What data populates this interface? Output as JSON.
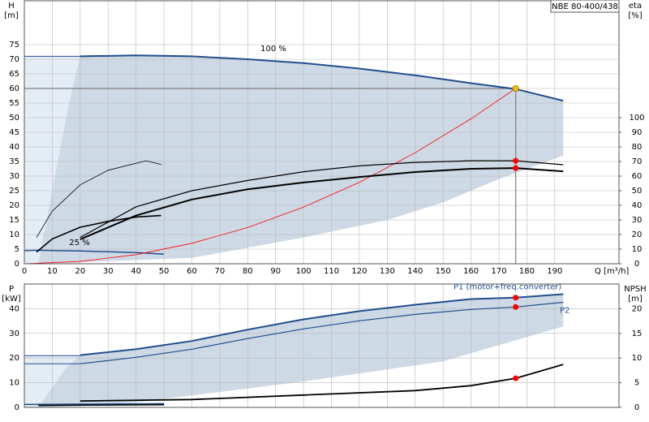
{
  "chart_data": [
    {
      "type": "line",
      "title": "NBE 80-400/438",
      "ylabel": "H",
      "yunit": "[m]",
      "y2label": "eta",
      "y2unit": "[%]",
      "xlabel": "Q [m³/h]",
      "xlim": [
        0,
        213
      ],
      "ylim": [
        0,
        90
      ],
      "y2lim": [
        0,
        180
      ],
      "xticks": [
        0,
        10,
        20,
        30,
        40,
        50,
        60,
        70,
        80,
        90,
        100,
        110,
        120,
        130,
        140,
        150,
        160,
        170,
        180,
        190
      ],
      "yticks": [
        0,
        5,
        10,
        15,
        20,
        25,
        30,
        35,
        40,
        45,
        50,
        55,
        60,
        65,
        70,
        75
      ],
      "y2ticks": [
        0,
        10,
        20,
        30,
        40,
        50,
        60,
        70,
        80,
        90,
        100
      ],
      "grid": true,
      "xtick_labels": true,
      "annotations": [
        "100 %",
        "25 %"
      ],
      "series": [
        {
          "kind": "area",
          "color": "#e4ecf6",
          "x": [
            0,
            20,
            20,
            0
          ],
          "values": [
            71,
            71,
            0,
            0
          ]
        },
        {
          "kind": "area",
          "color": "#cdd9e5",
          "x": [
            20,
            40,
            60,
            80,
            100,
            120,
            140,
            160,
            176,
            193,
            193,
            170,
            150,
            130,
            100,
            60,
            5,
            8,
            12,
            16
          ],
          "values": [
            71,
            71.3,
            71,
            70,
            68.7,
            66.8,
            64.5,
            61.8,
            59.8,
            55.8,
            37,
            29,
            21,
            15,
            9,
            2,
            0,
            15,
            35,
            55
          ]
        },
        {
          "kind": "line",
          "color": "#7f7f7f",
          "width": 1.2,
          "x": [
            0,
            176,
            176
          ],
          "values": [
            60,
            60,
            0
          ]
        },
        {
          "kind": "line",
          "color": "#1f4e8c",
          "width": 1,
          "x": [
            0,
            20
          ],
          "values": [
            71,
            71
          ]
        },
        {
          "kind": "line",
          "color": "#1f4e8c",
          "width": 2,
          "x": [
            20,
            40,
            60,
            80,
            100,
            120,
            140,
            160,
            176,
            193
          ],
          "values": [
            71,
            71.3,
            71,
            70,
            68.7,
            66.8,
            64.5,
            61.8,
            59.8,
            55.8
          ]
        },
        {
          "kind": "line",
          "color": "#1f4e8c",
          "width": 1.5,
          "x": [
            0,
            5,
            20,
            40,
            50
          ],
          "values": [
            4.5,
            4.6,
            4.4,
            3.8,
            3.3
          ]
        },
        {
          "kind": "line",
          "color": "#ff0000",
          "width": 0.8,
          "x": [
            0,
            20,
            40,
            60,
            80,
            100,
            120,
            140,
            160,
            176
          ],
          "values": [
            0,
            0.77,
            3.1,
            7,
            12.4,
            19.4,
            27.9,
            38,
            49.6,
            60
          ]
        },
        {
          "kind": "line",
          "color": "#000000",
          "width": 1.2,
          "axis": "y2",
          "x": [
            20,
            40,
            60,
            80,
            100,
            120,
            140,
            160,
            176,
            193
          ],
          "values": [
            18,
            39,
            50,
            57,
            63,
            67,
            69.4,
            70.5,
            70.5,
            67.8
          ]
        },
        {
          "kind": "line",
          "color": "#000000",
          "width": 2,
          "axis": "y2",
          "x": [
            20,
            40,
            60,
            80,
            100,
            120,
            140,
            160,
            176,
            193
          ],
          "values": [
            16.7,
            33,
            44,
            51,
            55.6,
            59.4,
            62.8,
            65,
            65.5,
            63.3
          ]
        },
        {
          "kind": "line",
          "color": "#000000",
          "width": 0.8,
          "axis": "y2",
          "x": [
            4.4,
            10,
            20,
            30,
            43.6,
            49
          ],
          "values": [
            18,
            36,
            54,
            64,
            70.5,
            68
          ]
        },
        {
          "kind": "line",
          "color": "#000000",
          "width": 1.6,
          "axis": "y2",
          "x": [
            4.4,
            10,
            20,
            30,
            40,
            49
          ],
          "values": [
            8,
            17,
            25,
            29,
            32,
            33
          ]
        },
        {
          "kind": "points",
          "color": "#ff0000",
          "axis": "y2",
          "x": [
            176,
            176
          ],
          "values": [
            70.5,
            65.5
          ]
        },
        {
          "kind": "points",
          "color": "#f5c000",
          "x": [
            176
          ],
          "values": [
            60
          ]
        }
      ]
    },
    {
      "type": "line",
      "ylabel": "P",
      "yunit": "[kW]",
      "y2label": "NPSH",
      "y2unit": "[m]",
      "xlim": [
        0,
        213
      ],
      "ylim": [
        0,
        50
      ],
      "y2lim": [
        0,
        25
      ],
      "xticks": [
        0,
        10,
        20,
        30,
        40,
        50,
        60,
        70,
        80,
        90,
        100,
        110,
        120,
        130,
        140,
        150,
        160,
        170,
        180,
        190
      ],
      "yticks": [
        0,
        10,
        20,
        30,
        40
      ],
      "y2ticks": [
        0,
        5,
        10,
        15,
        20
      ],
      "grid": true,
      "xtick_labels": false,
      "series": [
        {
          "kind": "area",
          "color": "#e4ecf6",
          "x": [
            0,
            20,
            20,
            0
          ],
          "values": [
            21,
            21,
            0,
            0
          ]
        },
        {
          "kind": "area",
          "color": "#cdd9e5",
          "x": [
            20,
            40,
            60,
            80,
            100,
            120,
            140,
            160,
            176,
            193,
            193,
            150,
            100,
            40,
            5,
            10,
            15
          ],
          "values": [
            21.2,
            23.6,
            26.9,
            31.5,
            35.7,
            39,
            41.6,
            43.9,
            44.5,
            45.9,
            32.8,
            18.7,
            10.5,
            2,
            0,
            8,
            16
          ]
        },
        {
          "kind": "line",
          "color": "#1f4e8c",
          "width": 1,
          "x": [
            0,
            20
          ],
          "values": [
            21,
            21
          ]
        },
        {
          "kind": "line",
          "color": "#1f4e8c",
          "width": 1,
          "x": [
            0,
            20
          ],
          "values": [
            17.7,
            17.7
          ]
        },
        {
          "kind": "line",
          "name": "P1 (motor+freq.converter)",
          "color": "#1f4e8c",
          "width": 2,
          "x": [
            20,
            40,
            60,
            80,
            100,
            120,
            140,
            160,
            176,
            193
          ],
          "values": [
            21.2,
            23.6,
            26.9,
            31.5,
            35.7,
            39,
            41.6,
            43.9,
            44.5,
            45.9
          ]
        },
        {
          "kind": "line",
          "name": "P2",
          "color": "#1f4e8c",
          "width": 1.2,
          "x": [
            20,
            40,
            60,
            80,
            100,
            120,
            140,
            160,
            176,
            193
          ],
          "values": [
            17.7,
            20.3,
            23.6,
            27.9,
            31.8,
            35.1,
            37.7,
            39.7,
            40.7,
            42.6
          ]
        },
        {
          "kind": "line",
          "color": "#1f4e8c",
          "width": 1.5,
          "x": [
            0,
            20,
            50
          ],
          "values": [
            1.2,
            1.3,
            1.5
          ]
        },
        {
          "kind": "line",
          "color": "#000000",
          "width": 1.5,
          "x": [
            5,
            20,
            50
          ],
          "values": [
            0.8,
            0.9,
            1.1
          ]
        },
        {
          "kind": "line",
          "color": "#000000",
          "width": 1.8,
          "axis": "y2",
          "x": [
            20,
            60,
            100,
            140,
            160,
            176,
            193
          ],
          "values": [
            1.3,
            1.6,
            2.5,
            3.4,
            4.4,
            5.9,
            8.7
          ]
        },
        {
          "kind": "points",
          "color": "#ff0000",
          "x": [
            176,
            176
          ],
          "values": [
            44.5,
            40.7
          ]
        },
        {
          "kind": "points",
          "color": "#ff0000",
          "axis": "y2",
          "x": [
            176
          ],
          "values": [
            5.9
          ]
        }
      ]
    }
  ]
}
